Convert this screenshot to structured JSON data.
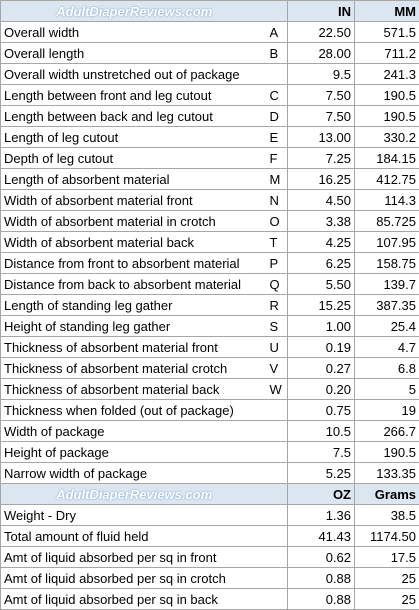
{
  "header": {
    "site": "AdultDiaperReviews.com",
    "in_label": "IN",
    "mm_label": "MM"
  },
  "dimensions": [
    {
      "label": "Overall width",
      "code": "A",
      "in": "22.50",
      "mm": "571.5"
    },
    {
      "label": "Overall length",
      "code": "B",
      "in": "28.00",
      "mm": "711.2"
    },
    {
      "label": "Overall width unstretched out of package",
      "code": "",
      "in": "9.5",
      "mm": "241.3"
    },
    {
      "label": "Length between front and leg cutout",
      "code": "C",
      "in": "7.50",
      "mm": "190.5"
    },
    {
      "label": "Length between back and leg cutout",
      "code": "D",
      "in": "7.50",
      "mm": "190.5"
    },
    {
      "label": "Length of leg cutout",
      "code": "E",
      "in": "13.00",
      "mm": "330.2"
    },
    {
      "label": "Depth of leg cutout",
      "code": "F",
      "in": "7.25",
      "mm": "184.15"
    },
    {
      "label": "Length of absorbent material",
      "code": "M",
      "in": "16.25",
      "mm": "412.75"
    },
    {
      "label": "Width of absorbent material front",
      "code": "N",
      "in": "4.50",
      "mm": "114.3"
    },
    {
      "label": "Width of absorbent material in crotch",
      "code": "O",
      "in": "3.38",
      "mm": "85.725"
    },
    {
      "label": "Width of absorbent material back",
      "code": "T",
      "in": "4.25",
      "mm": "107.95"
    },
    {
      "label": "Distance from front to absorbent material",
      "code": "P",
      "in": "6.25",
      "mm": "158.75"
    },
    {
      "label": "Distance from back to absorbent material",
      "code": "Q",
      "in": "5.50",
      "mm": "139.7"
    },
    {
      "label": "Length of standing leg gather",
      "code": "R",
      "in": "15.25",
      "mm": "387.35"
    },
    {
      "label": "Height of standing leg gather",
      "code": "S",
      "in": "1.00",
      "mm": "25.4"
    },
    {
      "label": "Thickness of absorbent material front",
      "code": "U",
      "in": "0.19",
      "mm": "4.7"
    },
    {
      "label": "Thickness of absorbent material crotch",
      "code": "V",
      "in": "0.27",
      "mm": "6.8"
    },
    {
      "label": "Thickness of absorbent material back",
      "code": "W",
      "in": "0.20",
      "mm": "5"
    },
    {
      "label": "Thickness when folded (out of package)",
      "code": "",
      "in": "0.75",
      "mm": "19"
    },
    {
      "label": "Width of package",
      "code": "",
      "in": "10.5",
      "mm": "266.7"
    },
    {
      "label": "Height of package",
      "code": "",
      "in": "7.5",
      "mm": "190.5"
    },
    {
      "label": "Narrow width of package",
      "code": "",
      "in": "5.25",
      "mm": "133.35"
    }
  ],
  "header2": {
    "site": "AdultDiaperReviews.com",
    "oz_label": "OZ",
    "grams_label": "Grams"
  },
  "weights": [
    {
      "label": "Weight - Dry",
      "oz": "1.36",
      "grams": "38.5"
    },
    {
      "label": "Total amount of fluid held",
      "oz": "41.43",
      "grams": "1174.50"
    },
    {
      "label": "Amt of liquid absorbed per sq in front",
      "oz": "0.62",
      "grams": "17.5"
    },
    {
      "label": "Amt of liquid absorbed per sq in crotch",
      "oz": "0.88",
      "grams": "25"
    },
    {
      "label": "Amt of liquid absorbed per sq in back",
      "oz": "0.88",
      "grams": "25"
    }
  ]
}
